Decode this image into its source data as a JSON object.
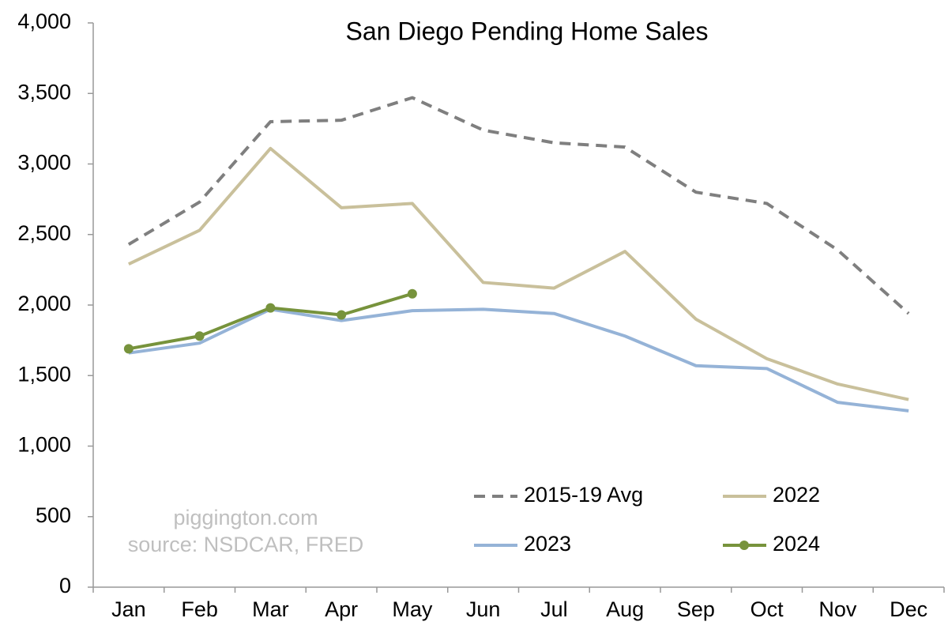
{
  "chart_data": {
    "type": "line",
    "title": "San Diego Pending Home Sales",
    "annotations": [
      "piggington.com",
      "source: NSDCAR, FRED"
    ],
    "categories": [
      "Jan",
      "Feb",
      "Mar",
      "Apr",
      "May",
      "Jun",
      "Jul",
      "Aug",
      "Sep",
      "Oct",
      "Nov",
      "Dec"
    ],
    "series": [
      {
        "name": "2015-19 Avg",
        "color": "#7f7f7f",
        "dashed": true,
        "values": [
          2430,
          2730,
          3300,
          3310,
          3470,
          3240,
          3150,
          3120,
          2800,
          2720,
          2390,
          1940
        ]
      },
      {
        "name": "2022",
        "color": "#c9c09b",
        "values": [
          2290,
          2530,
          3110,
          2690,
          2720,
          2160,
          2120,
          2380,
          1900,
          1620,
          1440,
          1330
        ]
      },
      {
        "name": "2023",
        "color": "#95b3d7",
        "values": [
          1660,
          1730,
          1970,
          1890,
          1960,
          1970,
          1940,
          1780,
          1570,
          1550,
          1310,
          1250
        ]
      },
      {
        "name": "2024",
        "color": "#77933c",
        "markers": true,
        "values": [
          1690,
          1780,
          1980,
          1930,
          2080,
          null,
          null,
          null,
          null,
          null,
          null,
          null
        ]
      }
    ],
    "ylim": [
      0,
      4000
    ],
    "yticks": [
      0,
      500,
      {
        "value": 1000,
        "label": "1,000"
      },
      {
        "value": 1500,
        "label": "1,500"
      },
      {
        "value": 2000,
        "label": "2,000"
      },
      {
        "value": 2500,
        "label": "2,500"
      },
      {
        "value": 3000,
        "label": "3,000"
      },
      {
        "value": 3500,
        "label": "3,500"
      },
      {
        "value": 4000,
        "label": "4,000"
      }
    ],
    "grid": false,
    "legend": "lower right"
  }
}
